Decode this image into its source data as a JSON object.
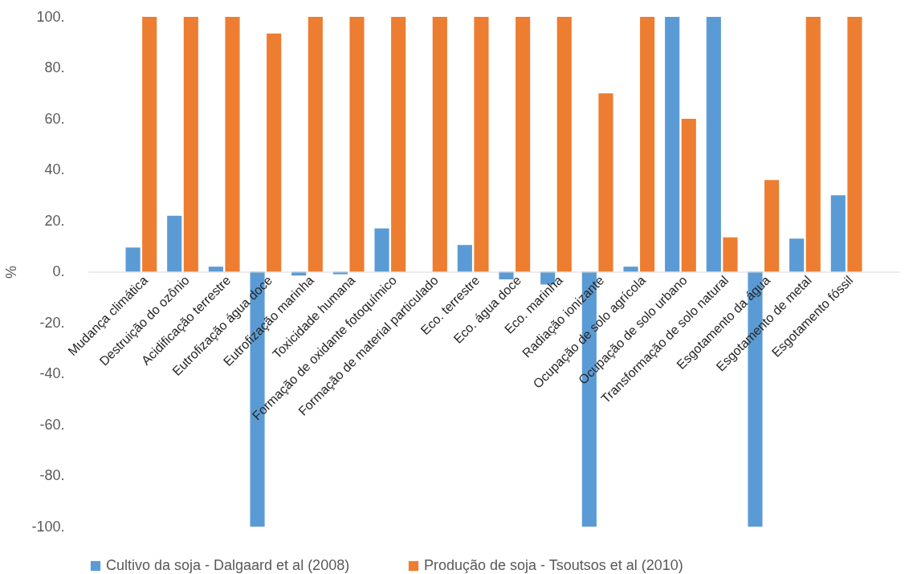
{
  "chart_data": {
    "type": "bar",
    "ylabel": "%",
    "categories": [
      "Mudança climática",
      "Destruição do ozônio",
      "Acidificação terrestre",
      "Eutrofização água doce",
      "Eutrofização marinha",
      "Toxicidade humana",
      "Formação de oxidante fotoquímico",
      "Formação de material particulado",
      "Eco. terrestre",
      "Eco. água doce",
      "Eco. marinha",
      "Radiação ionizante",
      "Ocupação de solo agrícola",
      "Ocupação de solo urbano",
      "Transformação de solo natural",
      "Esgotamento da água",
      "Esgotamento de metal",
      "Esgotamento fóssil"
    ],
    "series": [
      {
        "name": "Cultivo da soja - Dalgaard et al (2008)",
        "color": "#5b9bd5",
        "values": [
          9.5,
          22,
          2,
          -100,
          -1.5,
          -1,
          17,
          0,
          10.5,
          -3,
          -5,
          -100,
          2,
          100,
          100,
          -100,
          13,
          30
        ]
      },
      {
        "name": "Produção de soja - Tsoutsos et al (2010)",
        "color": "#ed7d31",
        "values": [
          100,
          100,
          100,
          93.5,
          100,
          100,
          100,
          100,
          100,
          100,
          100,
          70,
          100,
          60,
          13.5,
          36,
          100,
          100
        ]
      }
    ],
    "ylim": [
      -100,
      100
    ],
    "yticks": [
      {
        "value": -100,
        "label": "-100."
      },
      {
        "value": -80,
        "label": "-80."
      },
      {
        "value": -60,
        "label": "-60."
      },
      {
        "value": -40,
        "label": "-40."
      },
      {
        "value": -20,
        "label": "-20."
      },
      {
        "value": 0,
        "label": "0."
      },
      {
        "value": 20,
        "label": "20."
      },
      {
        "value": 40,
        "label": "40."
      },
      {
        "value": 60,
        "label": "60."
      },
      {
        "value": 80,
        "label": "80."
      },
      {
        "value": 100,
        "label": "100."
      }
    ],
    "grid": false,
    "legend": "bottom"
  }
}
